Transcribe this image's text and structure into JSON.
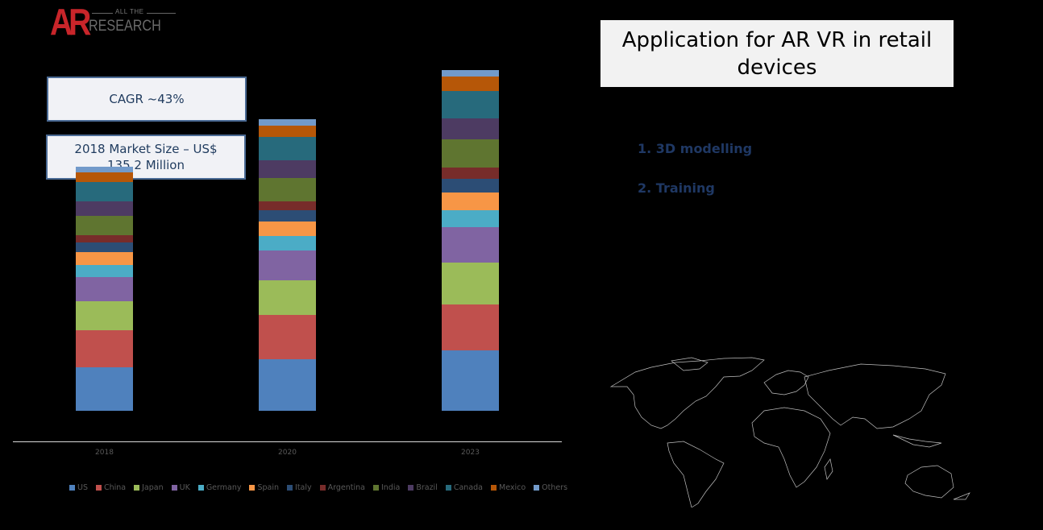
{
  "logo": {
    "mark": "AR",
    "tagline": "ALL THE",
    "name": "RESEARCH"
  },
  "infoboxes": {
    "cagr": "CAGR ~43%",
    "market_size_line1": "2018 Market Size – US$",
    "market_size_line2": "135.2 Million"
  },
  "title": {
    "line1": "Application for AR VR in retail",
    "line2": "devices"
  },
  "applications": [
    "1. 3D modelling",
    "2. Training"
  ],
  "colors": {
    "US": "#4f81bd",
    "China": "#c0504d",
    "Japan": "#9bbb59",
    "UK": "#8064a2",
    "Germany": "#4bacc6",
    "Spain": "#f79646",
    "Italy": "#2c4d75",
    "Argentina": "#772c2a",
    "India": "#5f7530",
    "Brazil": "#4d3b62",
    "Canada": "#276a7c",
    "Mexico": "#b65708",
    "Others": "#729aca"
  },
  "chart_data": {
    "type": "bar",
    "stacked": true,
    "title": "",
    "xlabel": "",
    "ylabel": "",
    "y_axis_shown": false,
    "grid": false,
    "legend_position": "bottom",
    "units_note": "Relative segment heights (pixels) – no y-axis scale shown",
    "categories": [
      "2018",
      "2020",
      "2023"
    ],
    "series": [
      {
        "name": "US",
        "values": [
          54,
          64,
          75
        ]
      },
      {
        "name": "China",
        "values": [
          46,
          55,
          57
        ]
      },
      {
        "name": "Japan",
        "values": [
          36,
          43,
          52
        ]
      },
      {
        "name": "UK",
        "values": [
          30,
          37,
          44
        ]
      },
      {
        "name": "Germany",
        "values": [
          15,
          18,
          21
        ]
      },
      {
        "name": "Spain",
        "values": [
          16,
          18,
          22
        ]
      },
      {
        "name": "Italy",
        "values": [
          12,
          14,
          17
        ]
      },
      {
        "name": "Argentina",
        "values": [
          9,
          11,
          14
        ]
      },
      {
        "name": "India",
        "values": [
          24,
          29,
          35
        ]
      },
      {
        "name": "Brazil",
        "values": [
          18,
          22,
          26
        ]
      },
      {
        "name": "Canada",
        "values": [
          24,
          29,
          34
        ]
      },
      {
        "name": "Mexico",
        "values": [
          12,
          14,
          18
        ]
      },
      {
        "name": "Others",
        "values": [
          7,
          8,
          8
        ]
      }
    ]
  }
}
